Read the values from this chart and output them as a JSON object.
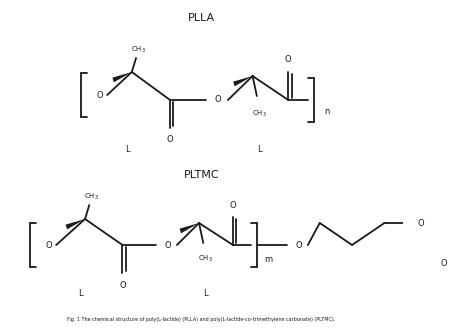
{
  "title_plla": "PLLA",
  "title_pltmc": "PLTMC",
  "bg_color": "#ffffff",
  "line_color": "#1a1a1a",
  "text_color": "#1a1a1a",
  "fig_width": 4.74,
  "fig_height": 3.3,
  "dpi": 100,
  "caption": "Fig. 1 The chemical structure of poly(L-lactide) (PLLA) and poly(L-lactide-co-trimethylene carbonate) (PLTMC)."
}
